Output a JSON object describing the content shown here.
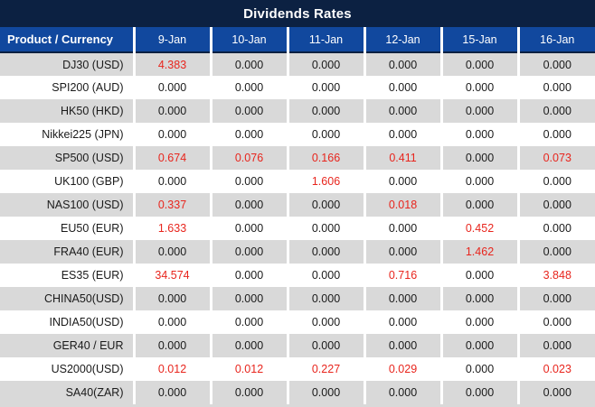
{
  "title": "Dividends Rates",
  "colors": {
    "title_bg": "#0c2142",
    "header_bg": "#11489e",
    "header_text": "#ffffff",
    "row_alt_bg": "#d9d9d9",
    "row_bg": "#ffffff",
    "value_text": "#1a1a1a",
    "nonzero_text": "#e8251d",
    "grid_line": "#ffffff"
  },
  "chart_data": {
    "type": "table",
    "title": "Dividends Rates",
    "columns": [
      "Product / Currency",
      "9-Jan",
      "10-Jan",
      "11-Jan",
      "12-Jan",
      "15-Jan",
      "16-Jan"
    ],
    "rows": [
      {
        "product": "DJ30 (USD)",
        "values": [
          "4.383",
          "0.000",
          "0.000",
          "0.000",
          "0.000",
          "0.000"
        ]
      },
      {
        "product": "SPI200 (AUD)",
        "values": [
          "0.000",
          "0.000",
          "0.000",
          "0.000",
          "0.000",
          "0.000"
        ]
      },
      {
        "product": "HK50 (HKD)",
        "values": [
          "0.000",
          "0.000",
          "0.000",
          "0.000",
          "0.000",
          "0.000"
        ]
      },
      {
        "product": "Nikkei225 (JPN)",
        "values": [
          "0.000",
          "0.000",
          "0.000",
          "0.000",
          "0.000",
          "0.000"
        ]
      },
      {
        "product": "SP500 (USD)",
        "values": [
          "0.674",
          "0.076",
          "0.166",
          "0.411",
          "0.000",
          "0.073"
        ]
      },
      {
        "product": "UK100 (GBP)",
        "values": [
          "0.000",
          "0.000",
          "1.606",
          "0.000",
          "0.000",
          "0.000"
        ]
      },
      {
        "product": "NAS100 (USD)",
        "values": [
          "0.337",
          "0.000",
          "0.000",
          "0.018",
          "0.000",
          "0.000"
        ]
      },
      {
        "product": "EU50 (EUR)",
        "values": [
          "1.633",
          "0.000",
          "0.000",
          "0.000",
          "0.452",
          "0.000"
        ]
      },
      {
        "product": "FRA40 (EUR)",
        "values": [
          "0.000",
          "0.000",
          "0.000",
          "0.000",
          "1.462",
          "0.000"
        ]
      },
      {
        "product": "ES35 (EUR)",
        "values": [
          "34.574",
          "0.000",
          "0.000",
          "0.716",
          "0.000",
          "3.848"
        ]
      },
      {
        "product": "CHINA50(USD)",
        "values": [
          "0.000",
          "0.000",
          "0.000",
          "0.000",
          "0.000",
          "0.000"
        ]
      },
      {
        "product": "INDIA50(USD)",
        "values": [
          "0.000",
          "0.000",
          "0.000",
          "0.000",
          "0.000",
          "0.000"
        ]
      },
      {
        "product": "GER40 / EUR",
        "values": [
          "0.000",
          "0.000",
          "0.000",
          "0.000",
          "0.000",
          "0.000"
        ]
      },
      {
        "product": "US2000(USD)",
        "values": [
          "0.012",
          "0.012",
          "0.227",
          "0.029",
          "0.000",
          "0.023"
        ]
      },
      {
        "product": "SA40(ZAR)",
        "values": [
          "0.000",
          "0.000",
          "0.000",
          "0.000",
          "0.000",
          "0.000"
        ]
      }
    ]
  }
}
